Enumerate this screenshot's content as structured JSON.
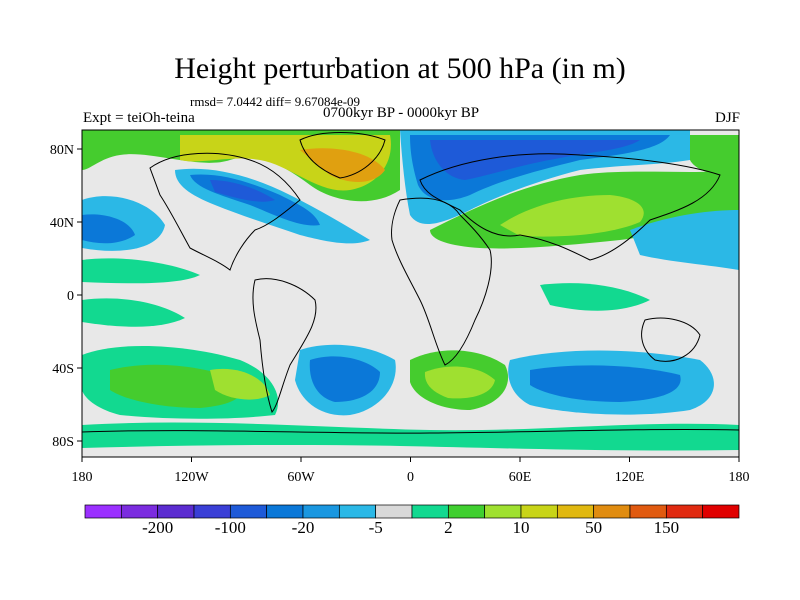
{
  "title": "Height perturbation at 500 hPa (in m)",
  "stats_line": "rmsd= 7.0442 diff= 9.67084e-09",
  "left_label": "Expt = teiOh-teina",
  "center_label": "0700kyr BP - 0000kyr BP",
  "right_label": "DJF",
  "x_ticks": [
    "180",
    "120W",
    "60W",
    "0",
    "60E",
    "120E",
    "180"
  ],
  "y_ticks": [
    "80N",
    "40N",
    "0",
    "40S",
    "80S"
  ],
  "colorbar": {
    "colors": [
      "#9b30ff",
      "#7b2cdf",
      "#5b2cd0",
      "#3a3fd6",
      "#1e5ad8",
      "#0b78d8",
      "#1a97e0",
      "#2bb8e6",
      "#d9d9d9",
      "#12d990",
      "#40cf30",
      "#9fe030",
      "#c8d418",
      "#e0b810",
      "#e08c10",
      "#e05a10",
      "#e02a10",
      "#e00000"
    ],
    "labels": [
      "-200",
      "-100",
      "-20",
      "-5",
      "2",
      "10",
      "50",
      "150"
    ]
  },
  "palette": {
    "background": "#e8e8e8",
    "teal": "#12d990",
    "green": "#45cc2e",
    "yellowgreen": "#9fe030",
    "yellow": "#c8d418",
    "orange": "#e0a010",
    "cyan": "#2bb8e6",
    "lightblue": "#1a97e0",
    "blue": "#0b78d8",
    "darkblue": "#1e5ad8"
  }
}
